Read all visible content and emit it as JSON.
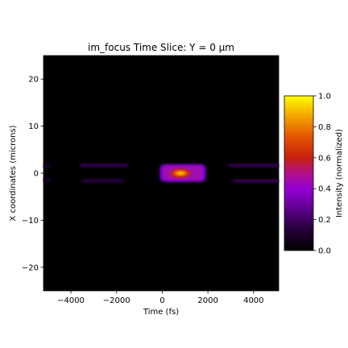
{
  "chart_data": {
    "type": "heatmap",
    "title": "im_focus Time Slice: Y = 0 μm",
    "xlabel": "Time (fs)",
    "ylabel": "X coordinates (microns)",
    "xlim": [
      -5200,
      5100
    ],
    "ylim": [
      -25,
      25
    ],
    "xticks": [
      -4000,
      -2000,
      0,
      2000,
      4000
    ],
    "yticks": [
      -20,
      -10,
      0,
      10,
      20
    ],
    "colormap": "gnuplot",
    "colorbar": {
      "label": "Intensity (normalized)",
      "range": [
        0,
        1
      ],
      "ticks": [
        0.0,
        0.2,
        0.4,
        0.6,
        0.8,
        1.0
      ],
      "tick_labels": [
        "0.0",
        "0.2",
        "0.4",
        "0.6",
        "0.8",
        "1.0"
      ]
    },
    "features": [
      {
        "kind": "main-pulse",
        "t": [
          -100,
          1900
        ],
        "x": [
          -1.8,
          1.9
        ],
        "peak": 1.0,
        "peak_t": 800,
        "peak_x": 0
      },
      {
        "kind": "side-band",
        "t": [
          -3600,
          -1500
        ],
        "x": [
          1.3,
          2.0
        ],
        "peak": 0.25
      },
      {
        "kind": "side-band",
        "t": [
          -3500,
          -1700
        ],
        "x": [
          -2.0,
          -1.2
        ],
        "peak": 0.2
      },
      {
        "kind": "side-band",
        "t": [
          2900,
          5100
        ],
        "x": [
          1.3,
          2.0
        ],
        "peak": 0.25
      },
      {
        "kind": "side-band",
        "t": [
          3100,
          5100
        ],
        "x": [
          -2.0,
          -1.3
        ],
        "peak": 0.25
      },
      {
        "kind": "edge-spot",
        "t": [
          -5200,
          -4900
        ],
        "x": [
          1.0,
          2.0
        ],
        "peak": 0.15
      },
      {
        "kind": "edge-spot",
        "t": [
          -5200,
          -4900
        ],
        "x": [
          -2.0,
          -1.0
        ],
        "peak": 0.15
      }
    ]
  }
}
